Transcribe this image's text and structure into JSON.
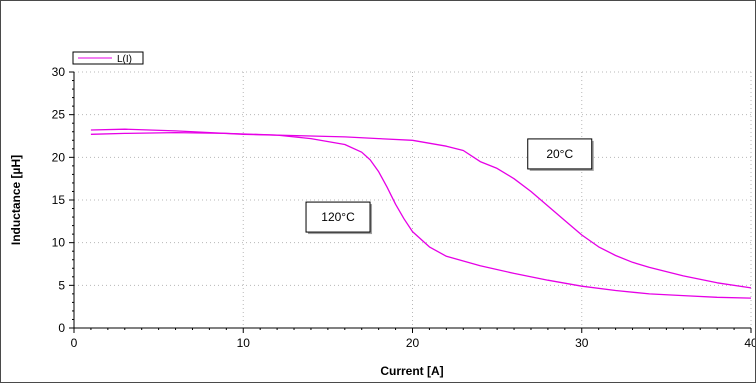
{
  "chart_data": {
    "type": "line",
    "title": "",
    "xlabel": "Current [A]",
    "ylabel": "Inductance [µH]",
    "xlim": [
      0,
      40
    ],
    "ylim": [
      0,
      30
    ],
    "x_ticks": [
      0,
      10,
      20,
      30,
      40
    ],
    "y_ticks": [
      0,
      5,
      10,
      15,
      20,
      25,
      30
    ],
    "grid": "dotted",
    "legend": {
      "position": "top-left",
      "entries": [
        "L(I)"
      ]
    },
    "line_color": "#e600e6",
    "series": [
      {
        "name": "L(I)",
        "annotation": "20°C",
        "x": [
          1,
          3,
          6,
          10,
          14,
          16,
          18,
          20,
          22,
          23,
          24,
          25,
          26,
          27,
          28,
          29,
          30,
          31,
          32,
          33,
          34,
          36,
          38,
          40
        ],
        "y": [
          23.2,
          23.3,
          23.1,
          22.7,
          22.5,
          22.4,
          22.2,
          22.0,
          21.3,
          20.8,
          19.5,
          18.7,
          17.5,
          16.0,
          14.3,
          12.6,
          10.9,
          9.5,
          8.5,
          7.7,
          7.1,
          6.1,
          5.3,
          4.7
        ]
      },
      {
        "name": "L(I)",
        "annotation": "120°C",
        "x": [
          1,
          3,
          6,
          9,
          12,
          14,
          16,
          17,
          17.5,
          18,
          18.5,
          19,
          19.5,
          20,
          21,
          22,
          24,
          26,
          28,
          30,
          32,
          34,
          36,
          38,
          40
        ],
        "y": [
          22.7,
          22.8,
          22.9,
          22.8,
          22.6,
          22.2,
          21.5,
          20.6,
          19.7,
          18.3,
          16.5,
          14.5,
          12.8,
          11.3,
          9.5,
          8.4,
          7.3,
          6.4,
          5.6,
          4.9,
          4.4,
          4.0,
          3.8,
          3.6,
          3.5
        ]
      }
    ],
    "annotations": [
      {
        "text": "20°C",
        "x": 28.7,
        "y": 20.4
      },
      {
        "text": "120°C",
        "x": 15.6,
        "y": 13.0
      }
    ]
  }
}
